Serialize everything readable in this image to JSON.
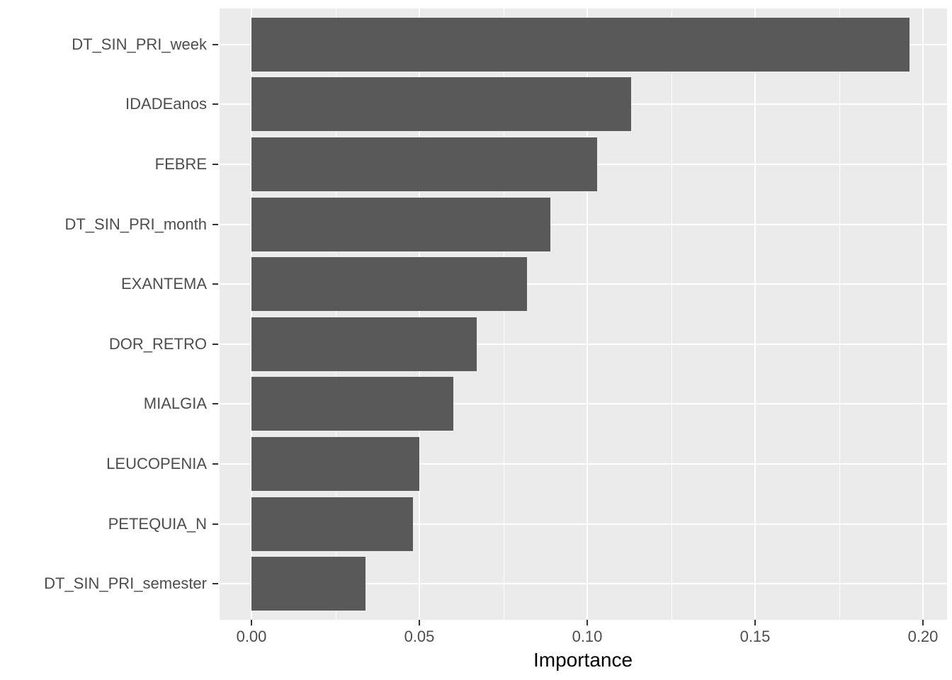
{
  "chart_data": {
    "type": "bar",
    "orientation": "horizontal",
    "title": "",
    "xlabel": "Importance",
    "ylabel": "",
    "categories": [
      "DT_SIN_PRI_week",
      "IDADEanos",
      "FEBRE",
      "DT_SIN_PRI_month",
      "EXANTEMA",
      "DOR_RETRO",
      "MIALGIA",
      "LEUCOPENIA",
      "PETEQUIA_N",
      "DT_SIN_PRI_semester"
    ],
    "values": [
      0.196,
      0.113,
      0.103,
      0.089,
      0.082,
      0.067,
      0.06,
      0.05,
      0.048,
      0.034
    ],
    "x_tick_labels": [
      "0.00",
      "0.05",
      "0.10",
      "0.15",
      "0.20"
    ],
    "x_tick_values": [
      0.0,
      0.05,
      0.1,
      0.15,
      0.2
    ],
    "x_minor_tick_values": [
      0.025,
      0.075,
      0.125,
      0.175
    ],
    "xlim": [
      -0.0095,
      0.2071
    ],
    "grid": "on",
    "legend": "none",
    "colors": {
      "bar_fill": "#595959",
      "panel_background": "#EBEBEB",
      "gridline": "#FFFFFF",
      "tick_label": "#4D4D4D",
      "axis_title": "#000000",
      "tick_mark": "#333333",
      "page_background": "#FFFFFF"
    }
  }
}
